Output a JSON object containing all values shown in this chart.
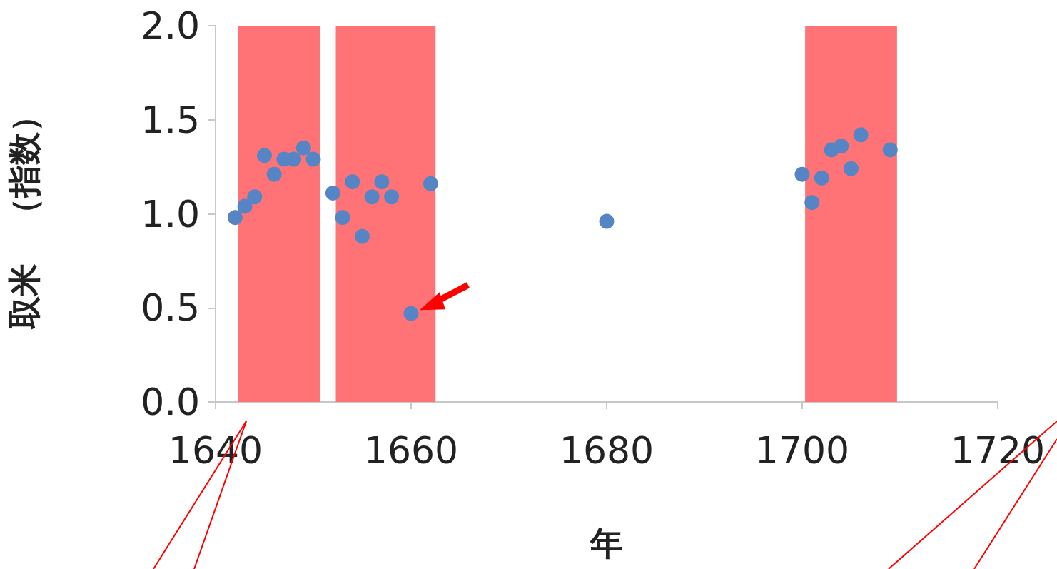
{
  "chart_data": {
    "type": "scatter",
    "xlabel": "年",
    "ylabel": "取米　（指数）",
    "x": [
      1642,
      1643,
      1644,
      1645,
      1646,
      1647,
      1648,
      1649,
      1650,
      1652,
      1653,
      1654,
      1655,
      1656,
      1657,
      1658,
      1660,
      1662,
      1680,
      1700,
      1701,
      1702,
      1703,
      1704,
      1705,
      1706,
      1709
    ],
    "values": [
      0.98,
      1.04,
      1.09,
      1.31,
      1.21,
      1.29,
      1.29,
      1.35,
      1.29,
      1.11,
      0.98,
      1.17,
      0.88,
      1.09,
      1.17,
      1.09,
      0.47,
      1.16,
      0.96,
      1.21,
      1.06,
      1.19,
      1.34,
      1.36,
      1.24,
      1.42,
      1.34
    ],
    "color": "#5585c5",
    "marker": "circle",
    "bands": [
      {
        "axis": "x",
        "from": 1642.3,
        "to": 1650.7,
        "color": "#ff7377"
      },
      {
        "axis": "x",
        "from": 1652.3,
        "to": 1662.5,
        "color": "#ff7377"
      },
      {
        "axis": "x",
        "from": 1700.3,
        "to": 1709.7,
        "color": "#ff7377"
      }
    ],
    "xlim": [
      1640,
      1720
    ],
    "xticks": [
      1640,
      1660,
      1680,
      1700,
      1720
    ],
    "ylim": [
      0,
      2
    ],
    "yticks": [
      {
        "value": 0,
        "label": "0.0"
      },
      {
        "value": 0.5,
        "label": "0.5"
      },
      {
        "value": 1,
        "label": "1.0"
      },
      {
        "value": 1.5,
        "label": "1.5"
      },
      {
        "value": 2,
        "label": "2.0"
      }
    ],
    "grid": false
  }
}
